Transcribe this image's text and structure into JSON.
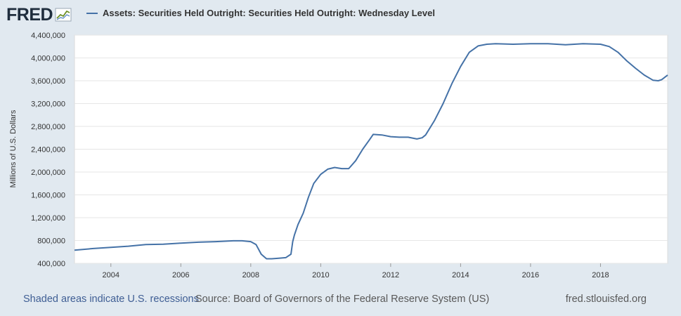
{
  "header": {
    "logo_text": "FRED",
    "logo_icon": "line-chart-icon",
    "series_title": "Assets: Securities Held Outright: Securities Held Outright: Wednesday Level"
  },
  "footer": {
    "recession_note": "Shaded areas indicate U.S. recessions",
    "source": "Source: Board of Governors of the Federal Reserve System (US)",
    "site": "fred.stlouisfed.org"
  },
  "colors": {
    "background": "#e1e9f0",
    "plot_background": "#ffffff",
    "series_line": "#4572a7",
    "gridline": "#e6e6e6"
  },
  "chart_data": {
    "type": "line",
    "title": "",
    "xlabel": "",
    "ylabel": "Millions of U.S. Dollars",
    "xlim": [
      2002.96,
      2019.92
    ],
    "ylim": [
      400000,
      4400000
    ],
    "x_ticks": [
      "2004",
      "2006",
      "2008",
      "2010",
      "2012",
      "2014",
      "2016",
      "2018"
    ],
    "y_ticks": [
      "400,000",
      "800,000",
      "1,200,000",
      "1,600,000",
      "2,000,000",
      "2,400,000",
      "2,800,000",
      "3,200,000",
      "3,600,000",
      "4,000,000",
      "4,400,000"
    ],
    "grid": true,
    "legend": "top-left",
    "series": [
      {
        "name": "Assets: Securities Held Outright: Securities Held Outright: Wednesday Level",
        "x": [
          2002.96,
          2003.5,
          2004.0,
          2004.5,
          2005.0,
          2005.5,
          2006.0,
          2006.5,
          2007.0,
          2007.5,
          2007.75,
          2008.0,
          2008.15,
          2008.3,
          2008.45,
          2008.6,
          2008.8,
          2009.0,
          2009.15,
          2009.2,
          2009.25,
          2009.35,
          2009.5,
          2009.65,
          2009.8,
          2010.0,
          2010.2,
          2010.4,
          2010.6,
          2010.8,
          2011.0,
          2011.2,
          2011.4,
          2011.5,
          2011.75,
          2012.0,
          2012.25,
          2012.5,
          2012.75,
          2012.9,
          2013.0,
          2013.25,
          2013.5,
          2013.75,
          2014.0,
          2014.25,
          2014.5,
          2014.75,
          2015.0,
          2015.5,
          2016.0,
          2016.5,
          2017.0,
          2017.5,
          2018.0,
          2018.25,
          2018.5,
          2018.75,
          2019.0,
          2019.25,
          2019.5,
          2019.65,
          2019.75,
          2019.92
        ],
        "y": [
          630000,
          660000,
          680000,
          700000,
          730000,
          735000,
          755000,
          770000,
          780000,
          795000,
          795000,
          780000,
          730000,
          560000,
          480000,
          480000,
          490000,
          500000,
          560000,
          780000,
          900000,
          1080000,
          1280000,
          1560000,
          1800000,
          1960000,
          2050000,
          2080000,
          2060000,
          2060000,
          2200000,
          2400000,
          2570000,
          2660000,
          2650000,
          2620000,
          2610000,
          2610000,
          2580000,
          2600000,
          2650000,
          2900000,
          3200000,
          3550000,
          3850000,
          4100000,
          4210000,
          4240000,
          4250000,
          4240000,
          4250000,
          4250000,
          4230000,
          4250000,
          4240000,
          4200000,
          4100000,
          3950000,
          3820000,
          3700000,
          3610000,
          3600000,
          3620000,
          3700000
        ]
      }
    ]
  }
}
